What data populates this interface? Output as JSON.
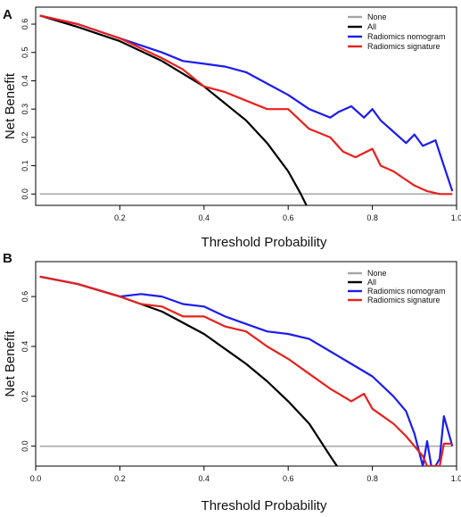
{
  "chart_data": [
    {
      "type": "line",
      "panel_label": "A",
      "xlabel": "Threshold Probability",
      "ylabel": "Net Benefit",
      "xlim": [
        0,
        1
      ],
      "ylim": [
        -0.04,
        0.66
      ],
      "x_ticks": [
        0.2,
        0.4,
        0.6,
        0.8,
        1.0
      ],
      "x_tick_labels": [
        "0.2",
        "0.4",
        "0.6",
        "0.8",
        "1.0"
      ],
      "y_ticks": [
        0.0,
        0.1,
        0.2,
        0.3,
        0.4,
        0.5,
        0.6
      ],
      "y_tick_labels": [
        "0.0",
        "0.1",
        "0.2",
        "0.3",
        "0.4",
        "0.5",
        "0.6"
      ],
      "legend_position": "top-right",
      "series": [
        {
          "name": "None",
          "color": "#a6a6a6",
          "x": [
            0.01,
            0.99
          ],
          "y": [
            0,
            0
          ]
        },
        {
          "name": "All",
          "color": "#000000",
          "x": [
            0.01,
            0.1,
            0.2,
            0.3,
            0.4,
            0.5,
            0.55,
            0.6,
            0.63,
            0.66
          ],
          "y": [
            0.63,
            0.59,
            0.54,
            0.47,
            0.38,
            0.26,
            0.18,
            0.08,
            0.0,
            -0.09
          ]
        },
        {
          "name": "Radiomics nomogram",
          "color": "#1c1cf0",
          "x": [
            0.01,
            0.1,
            0.2,
            0.3,
            0.35,
            0.4,
            0.45,
            0.5,
            0.55,
            0.6,
            0.65,
            0.7,
            0.72,
            0.75,
            0.78,
            0.8,
            0.82,
            0.85,
            0.88,
            0.9,
            0.92,
            0.95,
            0.97,
            0.99
          ],
          "y": [
            0.63,
            0.6,
            0.55,
            0.5,
            0.47,
            0.46,
            0.45,
            0.43,
            0.39,
            0.35,
            0.3,
            0.27,
            0.29,
            0.31,
            0.27,
            0.3,
            0.26,
            0.22,
            0.18,
            0.21,
            0.17,
            0.19,
            0.1,
            0.01
          ]
        },
        {
          "name": "Radiomics signature",
          "color": "#e8201b",
          "x": [
            0.01,
            0.1,
            0.2,
            0.3,
            0.35,
            0.4,
            0.45,
            0.5,
            0.55,
            0.6,
            0.65,
            0.7,
            0.73,
            0.76,
            0.8,
            0.82,
            0.85,
            0.88,
            0.9,
            0.93,
            0.96,
            0.99
          ],
          "y": [
            0.63,
            0.6,
            0.55,
            0.48,
            0.44,
            0.38,
            0.36,
            0.33,
            0.3,
            0.3,
            0.23,
            0.2,
            0.15,
            0.13,
            0.16,
            0.1,
            0.08,
            0.05,
            0.03,
            0.01,
            0.0,
            0.0
          ]
        }
      ]
    },
    {
      "type": "line",
      "panel_label": "B",
      "xlabel": "Threshold Probability",
      "ylabel": "Net Benefit",
      "xlim": [
        0,
        1
      ],
      "ylim": [
        -0.08,
        0.74
      ],
      "x_ticks": [
        0.0,
        0.2,
        0.4,
        0.6,
        0.8,
        1.0
      ],
      "x_tick_labels": [
        "0.0",
        "0.2",
        "0.4",
        "0.6",
        "0.8",
        "1.0"
      ],
      "y_ticks": [
        0.0,
        0.2,
        0.4,
        0.6
      ],
      "y_tick_labels": [
        "0.0",
        "0.2",
        "0.4",
        "0.6"
      ],
      "legend_position": "top-right",
      "series": [
        {
          "name": "None",
          "color": "#a6a6a6",
          "x": [
            0.01,
            0.99
          ],
          "y": [
            0,
            0
          ]
        },
        {
          "name": "All",
          "color": "#000000",
          "x": [
            0.01,
            0.1,
            0.2,
            0.3,
            0.4,
            0.5,
            0.55,
            0.6,
            0.65,
            0.7,
            0.72
          ],
          "y": [
            0.68,
            0.65,
            0.6,
            0.54,
            0.45,
            0.33,
            0.26,
            0.18,
            0.09,
            -0.04,
            -0.09
          ]
        },
        {
          "name": "Radiomics nomogram",
          "color": "#1c1cf0",
          "x": [
            0.01,
            0.1,
            0.2,
            0.25,
            0.3,
            0.35,
            0.4,
            0.45,
            0.5,
            0.55,
            0.6,
            0.65,
            0.7,
            0.75,
            0.8,
            0.85,
            0.88,
            0.9,
            0.92,
            0.93,
            0.94,
            0.95,
            0.96,
            0.97,
            0.98,
            0.99
          ],
          "y": [
            0.68,
            0.65,
            0.6,
            0.61,
            0.6,
            0.57,
            0.56,
            0.52,
            0.49,
            0.46,
            0.45,
            0.43,
            0.38,
            0.33,
            0.28,
            0.2,
            0.14,
            0.05,
            -0.08,
            0.02,
            -0.08,
            -0.08,
            -0.05,
            0.12,
            0.06,
            0.0
          ]
        },
        {
          "name": "Radiomics signature",
          "color": "#e8201b",
          "x": [
            0.01,
            0.1,
            0.2,
            0.25,
            0.3,
            0.35,
            0.4,
            0.45,
            0.5,
            0.55,
            0.6,
            0.65,
            0.7,
            0.75,
            0.78,
            0.8,
            0.85,
            0.88,
            0.9,
            0.92,
            0.93,
            0.94,
            0.95,
            0.96,
            0.97,
            0.98,
            0.99
          ],
          "y": [
            0.68,
            0.65,
            0.6,
            0.57,
            0.56,
            0.52,
            0.52,
            0.48,
            0.46,
            0.4,
            0.35,
            0.29,
            0.23,
            0.18,
            0.21,
            0.15,
            0.09,
            0.04,
            0.0,
            -0.04,
            -0.08,
            -0.08,
            -0.08,
            -0.08,
            0.01,
            0.01,
            0.01
          ]
        }
      ]
    }
  ]
}
